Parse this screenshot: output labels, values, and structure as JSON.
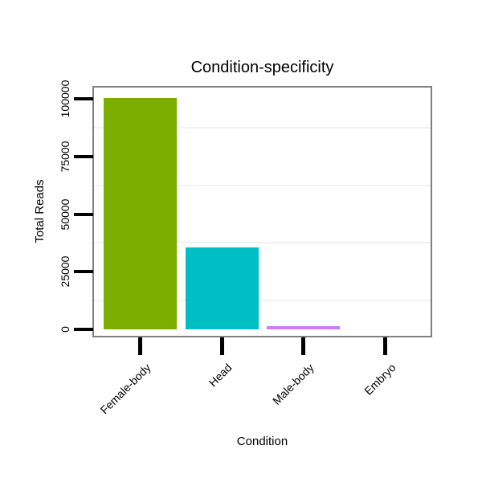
{
  "title": "Condition-specificity",
  "chart_data": {
    "type": "bar",
    "title": "Condition-specificity",
    "xlabel": "Condition",
    "ylabel": "Total Reads",
    "categories": [
      "Female-body",
      "Head",
      "Male-body",
      "Embryo"
    ],
    "values": [
      100500,
      35700,
      1500,
      0
    ],
    "bar_colors": [
      "#7CAE00",
      "#00BFC4",
      "#C77CFF",
      "#F8766D"
    ],
    "yticks": [
      0,
      25000,
      50000,
      75000,
      100000
    ],
    "ytick_labels": [
      "0",
      "25000",
      "50000",
      "75000",
      "100000"
    ],
    "minor_gridlines": [
      12500,
      37500,
      62500,
      87500
    ],
    "ylim": [
      0,
      105000
    ],
    "grid": "minor-horizontal-only",
    "legend": "none",
    "x_tick_label_angle": 45,
    "y_tick_label_angle": 90
  },
  "colors": {
    "background": "#ffffff",
    "panel_background": "#ffffff",
    "panel_border": "#7f7f7f",
    "tick": "#000000",
    "text": "#000000",
    "minor_grid": "#f2f2f2"
  }
}
